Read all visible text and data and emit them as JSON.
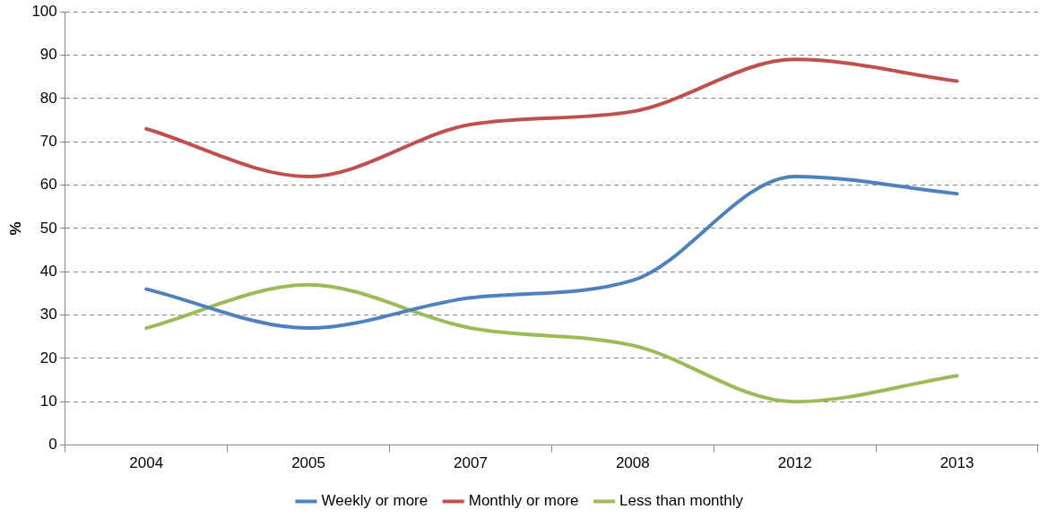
{
  "chart_data": {
    "type": "line",
    "ylabel": "%",
    "categories": [
      "2004",
      "2005",
      "2007",
      "2008",
      "2012",
      "2013"
    ],
    "series": [
      {
        "name": "Weekly or more",
        "color": "#4f81bd",
        "values": [
          36,
          27,
          34,
          38,
          62,
          58
        ]
      },
      {
        "name": "Monthly or more",
        "color": "#c0504d",
        "values": [
          73,
          62,
          74,
          77,
          89,
          84
        ]
      },
      {
        "name": "Less than monthly",
        "color": "#9bbb59",
        "values": [
          27,
          37,
          27,
          23,
          10,
          16
        ]
      }
    ],
    "ylim": [
      0,
      100
    ],
    "yticks": [
      0,
      10,
      20,
      30,
      40,
      50,
      60,
      70,
      80,
      90,
      100
    ],
    "grid": "y",
    "legend": "bottom",
    "marker": "none",
    "line_style": "solid"
  }
}
